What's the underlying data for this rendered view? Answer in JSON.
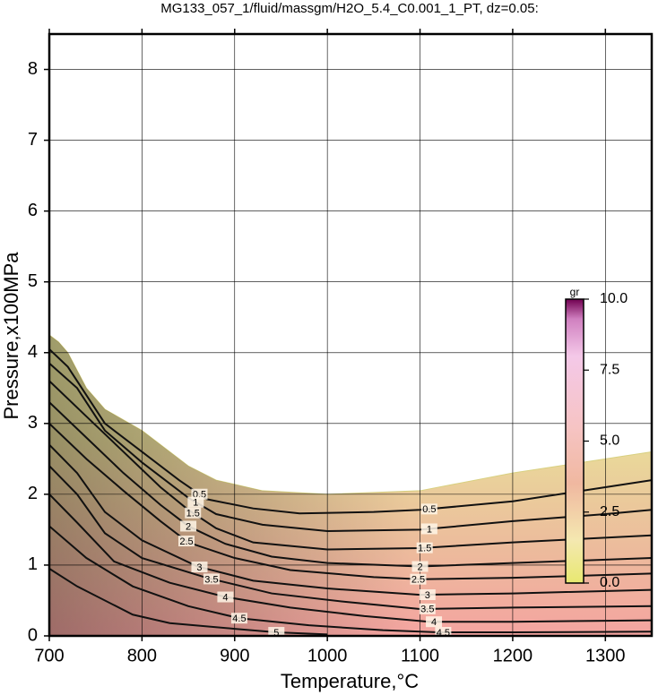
{
  "chart_data": {
    "type": "contour",
    "title": "MG133_057_1/fluid/massgm/H2O_5.4_C0.001_1_PT, dz=0.05:",
    "x_label": "Temperature,°C",
    "y_label": "Pressure,x100MPa",
    "xlim": [
      700,
      1350
    ],
    "ylim": [
      0,
      8.5
    ],
    "xticks": [
      700,
      800,
      900,
      1000,
      1100,
      1200,
      1300
    ],
    "yticks": [
      0,
      1,
      2,
      3,
      4,
      5,
      6,
      7,
      8
    ],
    "grid": true,
    "field": {
      "x": [
        700,
        710,
        720,
        740,
        760,
        800,
        850,
        880,
        930,
        1000,
        1100,
        1200,
        1300,
        1350,
        1350,
        700
      ],
      "y": [
        4.25,
        4.15,
        4.0,
        3.5,
        3.2,
        2.9,
        2.4,
        2.2,
        2.05,
        2.0,
        2.05,
        2.3,
        2.5,
        2.6,
        0,
        0
      ]
    },
    "contours": [
      {
        "level": 0.5,
        "x": [
          700,
          720,
          740,
          760,
          800,
          840,
          870,
          920,
          970,
          1050,
          1100,
          1200,
          1300,
          1350
        ],
        "y": [
          4.05,
          3.8,
          3.4,
          3.0,
          2.6,
          2.2,
          1.93,
          1.8,
          1.73,
          1.75,
          1.78,
          1.9,
          2.1,
          2.2
        ]
      },
      {
        "level": 1,
        "x": [
          700,
          730,
          760,
          800,
          850,
          880,
          930,
          1000,
          1100,
          1200,
          1300,
          1350
        ],
        "y": [
          3.85,
          3.5,
          2.9,
          2.45,
          1.95,
          1.72,
          1.57,
          1.48,
          1.5,
          1.62,
          1.72,
          1.78
        ]
      },
      {
        "level": 1.5,
        "x": [
          700,
          740,
          780,
          820,
          850,
          880,
          920,
          1000,
          1100,
          1200,
          1350
        ],
        "y": [
          3.6,
          3.1,
          2.6,
          2.1,
          1.78,
          1.52,
          1.32,
          1.22,
          1.24,
          1.32,
          1.42
        ]
      },
      {
        "level": 2,
        "x": [
          700,
          740,
          780,
          820,
          850,
          890,
          940,
          1000,
          1100,
          1200,
          1350
        ],
        "y": [
          3.3,
          2.8,
          2.3,
          1.85,
          1.55,
          1.3,
          1.12,
          1.03,
          0.98,
          1.03,
          1.1
        ]
      },
      {
        "level": 2.5,
        "x": [
          700,
          740,
          780,
          820,
          850,
          900,
          960,
          1050,
          1100,
          1200,
          1350
        ],
        "y": [
          3.0,
          2.5,
          2.05,
          1.62,
          1.32,
          1.1,
          0.93,
          0.83,
          0.8,
          0.82,
          0.88
        ]
      },
      {
        "level": 3,
        "x": [
          700,
          730,
          760,
          800,
          860,
          920,
          1000,
          1100,
          1200,
          1350
        ],
        "y": [
          2.7,
          2.3,
          1.75,
          1.35,
          0.98,
          0.78,
          0.67,
          0.58,
          0.6,
          0.65
        ]
      },
      {
        "level": 3.5,
        "x": [
          700,
          730,
          760,
          800,
          870,
          940,
          1020,
          1100,
          1200,
          1350
        ],
        "y": [
          2.4,
          2.0,
          1.45,
          1.1,
          0.82,
          0.6,
          0.48,
          0.38,
          0.4,
          0.42
        ]
      },
      {
        "level": 4,
        "x": [
          700,
          730,
          770,
          830,
          890,
          960,
          1040,
          1110,
          1200,
          1350
        ],
        "y": [
          2.0,
          1.6,
          1.05,
          0.75,
          0.55,
          0.4,
          0.28,
          0.2,
          0.2,
          0.22
        ]
      },
      {
        "level": 4.5,
        "x": [
          700,
          740,
          790,
          850,
          905,
          980,
          1060,
          1120,
          1200,
          1350
        ],
        "y": [
          1.55,
          1.1,
          0.7,
          0.42,
          0.25,
          0.15,
          0.08,
          0.05,
          0.05,
          0.06
        ]
      },
      {
        "level": 5,
        "x": [
          700,
          730,
          790,
          830,
          900,
          945,
          1000
        ],
        "y": [
          0.95,
          0.7,
          0.3,
          0.18,
          0.1,
          0.05,
          0.02
        ]
      }
    ],
    "colorbar": {
      "label": "gr",
      "lim": [
        0,
        10
      ],
      "ticks": [
        {
          "value": 0,
          "label": "0.0"
        },
        {
          "value": 2.5,
          "label": "2.5"
        },
        {
          "value": 5,
          "label": "5.0"
        },
        {
          "value": 7.5,
          "label": "7.5"
        },
        {
          "value": 10,
          "label": "10.0"
        }
      ]
    }
  }
}
